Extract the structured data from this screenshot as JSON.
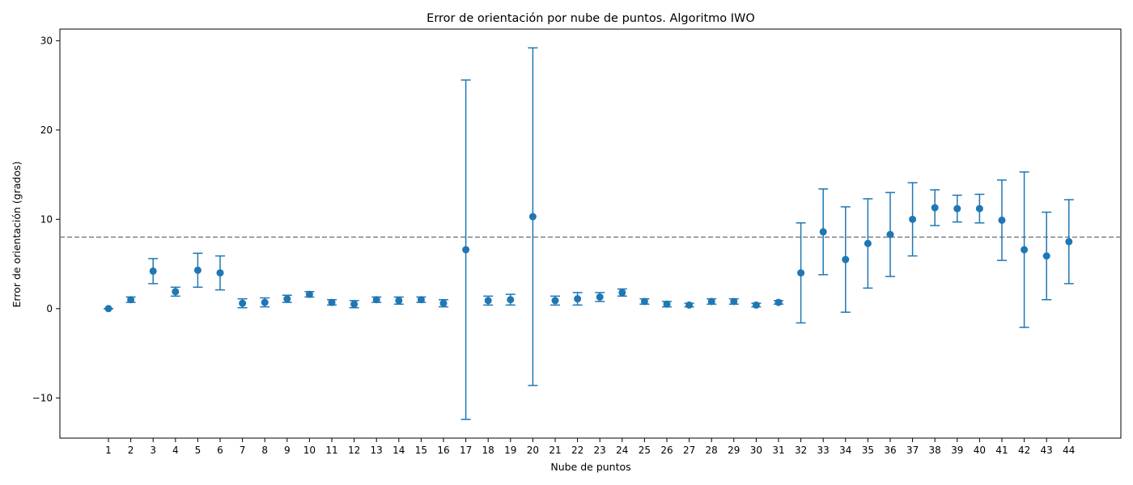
{
  "chart_data": {
    "type": "scatter",
    "title": "Error de orientación por nube de puntos. Algoritmo IWO",
    "xlabel": "Nube de puntos",
    "ylabel": "Error de orientación (grados)",
    "categories": [
      "1",
      "2",
      "3",
      "4",
      "5",
      "6",
      "7",
      "8",
      "9",
      "10",
      "11",
      "12",
      "13",
      "14",
      "15",
      "16",
      "17",
      "18",
      "19",
      "20",
      "21",
      "22",
      "23",
      "24",
      "25",
      "26",
      "27",
      "28",
      "29",
      "30",
      "31",
      "32",
      "33",
      "34",
      "35",
      "36",
      "37",
      "38",
      "39",
      "40",
      "41",
      "42",
      "43",
      "44"
    ],
    "series": [
      {
        "values": [
          0.0,
          1.0,
          4.2,
          1.9,
          4.3,
          4.0,
          0.6,
          0.7,
          1.1,
          1.6,
          0.7,
          0.5,
          1.0,
          0.9,
          1.0,
          0.6,
          6.6,
          0.9,
          1.0,
          10.3,
          0.9,
          1.1,
          1.3,
          1.8,
          0.8,
          0.5,
          0.4,
          0.8,
          0.8,
          0.4,
          0.7,
          4.0,
          8.6,
          5.5,
          7.3,
          8.3,
          10.0,
          11.3,
          11.2,
          11.2,
          9.9,
          6.6,
          5.9,
          7.5
        ],
        "errors": [
          0.0,
          0.3,
          1.4,
          0.5,
          1.9,
          1.9,
          0.5,
          0.5,
          0.4,
          0.3,
          0.3,
          0.4,
          0.3,
          0.4,
          0.3,
          0.4,
          19.0,
          0.5,
          0.6,
          18.9,
          0.5,
          0.7,
          0.5,
          0.4,
          0.3,
          0.3,
          0.2,
          0.3,
          0.3,
          0.2,
          0.2,
          5.6,
          4.8,
          5.9,
          5.0,
          4.7,
          4.1,
          2.0,
          1.5,
          1.6,
          4.5,
          8.7,
          4.9,
          4.7
        ]
      }
    ],
    "reference_line": {
      "y": 8.0,
      "style": "dashed"
    },
    "ylim": [
      -14.5,
      31.3
    ],
    "yticks": [
      -10,
      0,
      10,
      20,
      30
    ],
    "grid": false,
    "colors": {
      "series": "#1f77b4",
      "reference": "#808080"
    }
  }
}
